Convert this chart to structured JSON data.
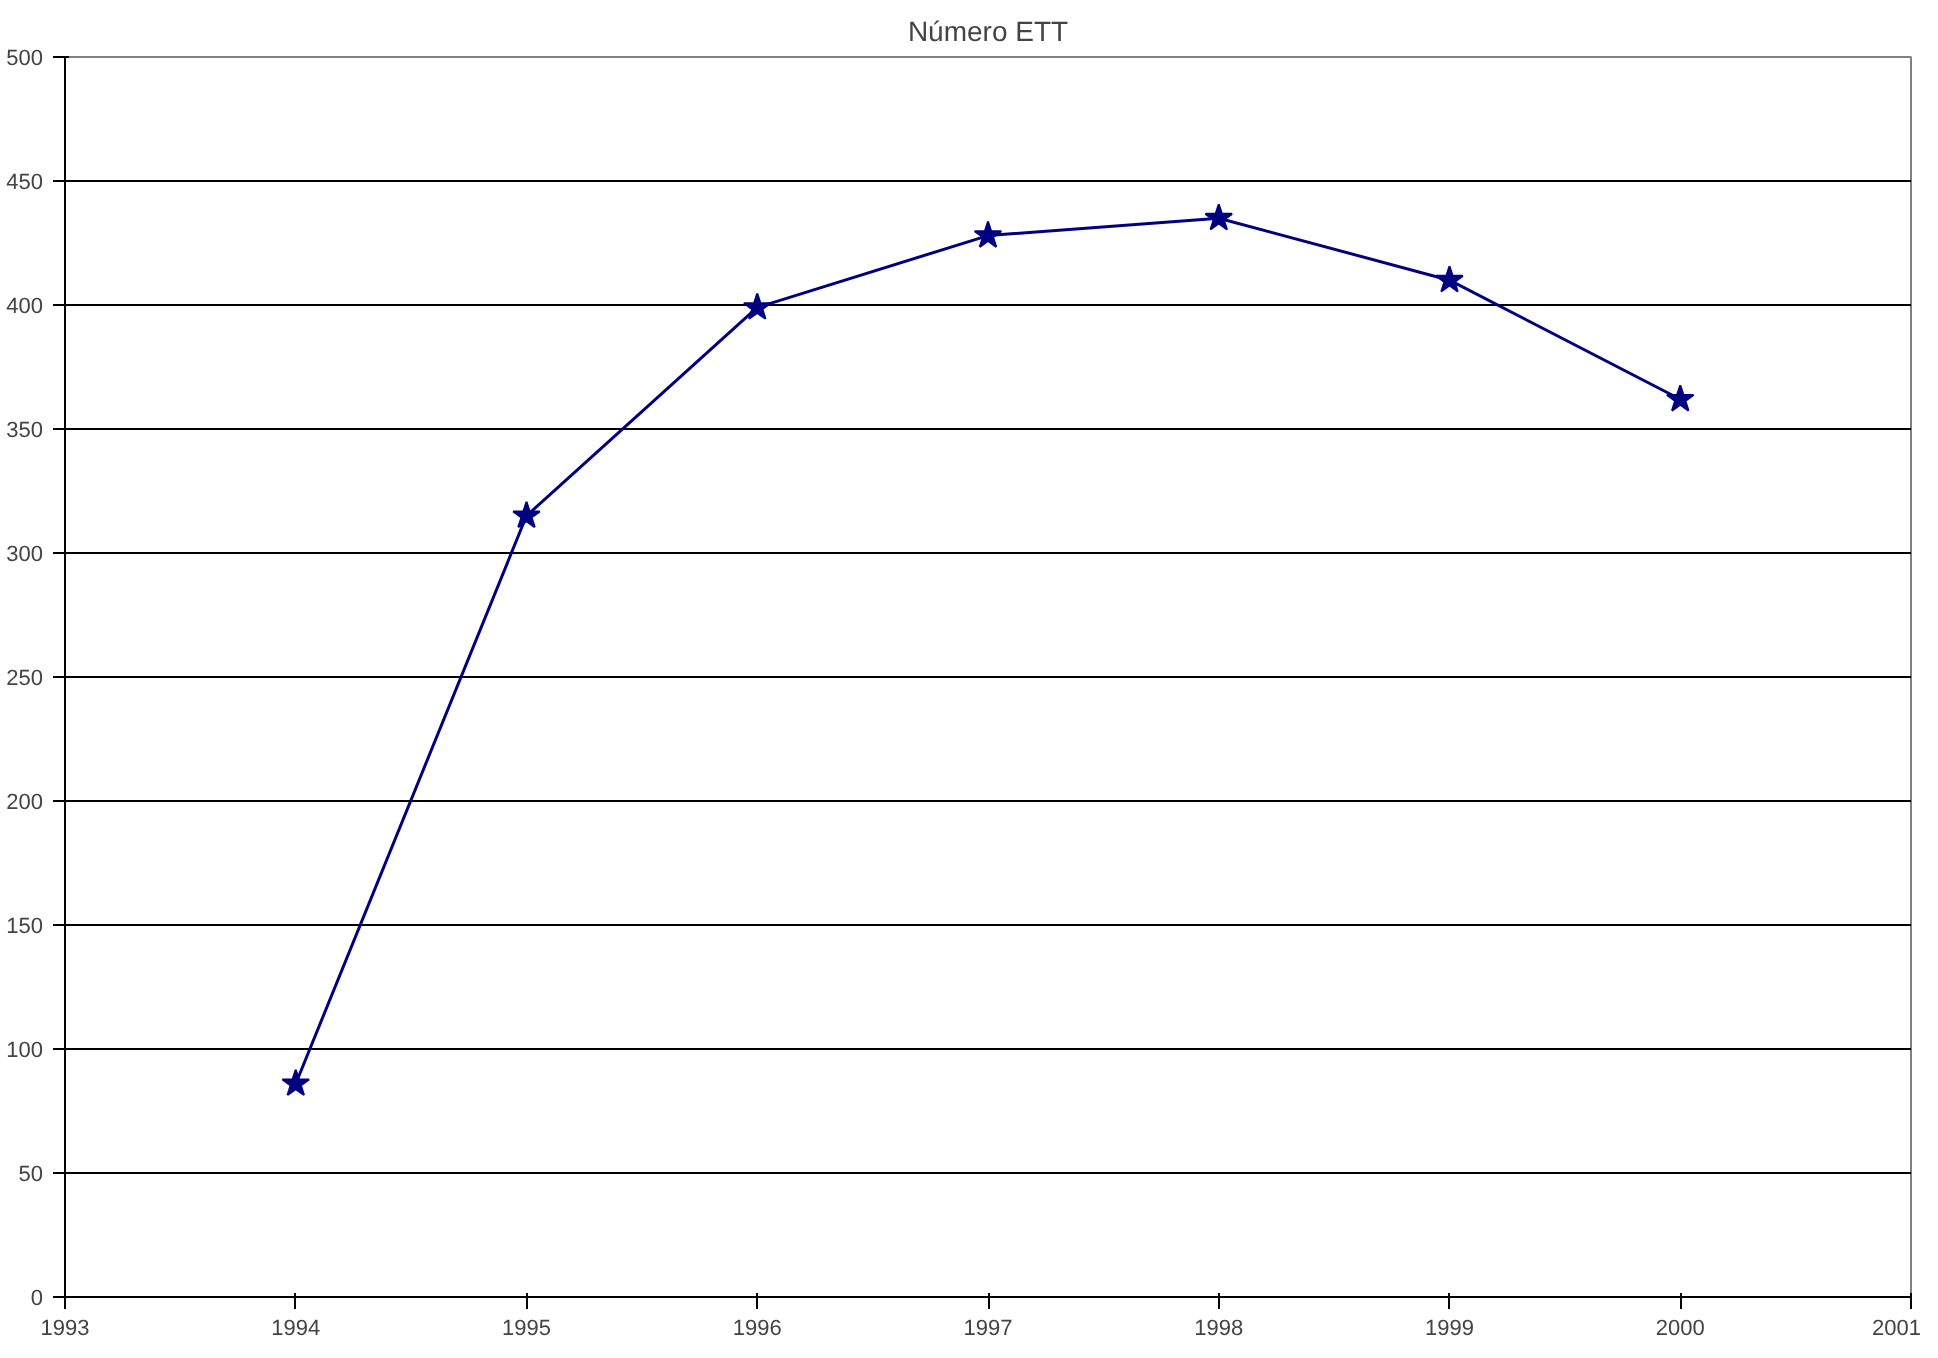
{
  "chart_data": {
    "type": "line",
    "title": "Número ETT",
    "x": [
      1994,
      1995,
      1996,
      1997,
      1998,
      1999,
      2000
    ],
    "series": [
      {
        "color": "#000080",
        "values": [
          86,
          315,
          399,
          428,
          435,
          410,
          362
        ]
      }
    ],
    "xlim": [
      1993,
      2001
    ],
    "xticks": [
      1993,
      1994,
      1995,
      1996,
      1997,
      1998,
      1999,
      2000,
      2001
    ],
    "ylim": [
      0,
      500
    ],
    "yticks": [
      0,
      50,
      100,
      150,
      200,
      250,
      300,
      350,
      400,
      450,
      500
    ],
    "grid": "y",
    "marker": "star",
    "line_style": "solid"
  }
}
